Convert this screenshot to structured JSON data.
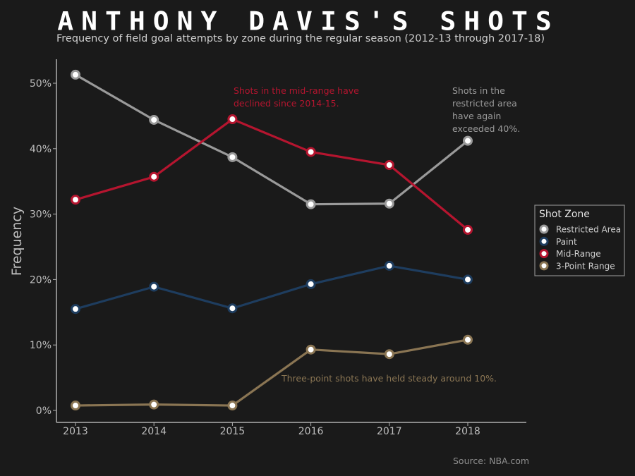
{
  "header": {
    "title": "ANTHONY DAVIS'S SHOTS",
    "subtitle": "Frequency of field goal attempts by zone during the regular season (2012-13 through 2017-18)"
  },
  "footer": {
    "source": "Source: NBA.com"
  },
  "colors": {
    "background": "#1a1a1a",
    "restricted_area": "#9a9a9a",
    "paint": "#1e3d5f",
    "mid_range": "#b5152f",
    "three_point": "#8a7553"
  },
  "chart_data": {
    "type": "line",
    "title": "ANTHONY DAVIS'S SHOTS",
    "subtitle": "Frequency of field goal attempts by zone during the regular season (2012-13 through 2017-18)",
    "xlabel": "",
    "ylabel": "Frequency",
    "x": [
      2013,
      2014,
      2015,
      2016,
      2017,
      2018
    ],
    "x_tick_labels": [
      "2013",
      "2014",
      "2015",
      "2016",
      "2017",
      "2018"
    ],
    "y_tick_labels": [
      "0%",
      "10%",
      "20%",
      "30%",
      "40%",
      "50%"
    ],
    "y_ticks": [
      0,
      10,
      20,
      30,
      40,
      50
    ],
    "ylim": [
      -1.7,
      53.5
    ],
    "grid": false,
    "legend": {
      "title": "Shot Zone",
      "position": "right",
      "entries": [
        "Restricted Area",
        "Paint",
        "Mid-Range",
        "3-Point Range"
      ]
    },
    "series": [
      {
        "name": "Restricted Area",
        "color": "#9a9a9a",
        "values": [
          51.3,
          44.4,
          38.7,
          31.5,
          31.6,
          41.2
        ]
      },
      {
        "name": "Paint",
        "color": "#1e3d5f",
        "values": [
          15.5,
          18.9,
          15.6,
          19.3,
          22.1,
          20.0
        ]
      },
      {
        "name": "Mid-Range",
        "color": "#b5152f",
        "values": [
          32.2,
          35.7,
          44.5,
          39.5,
          37.5,
          27.6
        ]
      },
      {
        "name": "3-Point Range",
        "color": "#8a7553",
        "values": [
          0.75,
          0.9,
          0.75,
          9.3,
          8.6,
          10.8
        ]
      }
    ],
    "annotations": [
      {
        "text": [
          "Shots in the mid-range have",
          "declined since 2014-15."
        ],
        "color": "#b5152f",
        "series": "Mid-Range"
      },
      {
        "text": [
          "Shots in the",
          "restricted area",
          "have again",
          "exceeded 40%."
        ],
        "color": "#9a9a9a",
        "series": "Restricted Area"
      },
      {
        "text": [
          "Three-point shots have held steady around 10%."
        ],
        "color": "#8a7553",
        "series": "3-Point Range"
      }
    ],
    "source": "Source: NBA.com"
  }
}
